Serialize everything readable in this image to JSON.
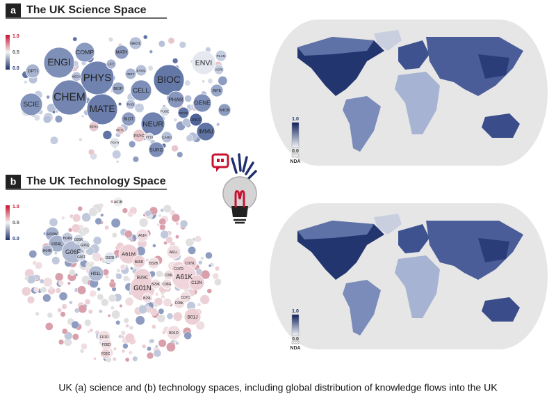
{
  "panels": [
    {
      "letter": "a",
      "title": "The UK Science Space",
      "scale": [
        "1.0",
        "0.5",
        "0.0"
      ],
      "nodes": [
        "ENGI",
        "COMP",
        "PHYS",
        "CHEM",
        "MATE",
        "BIOC",
        "CELL",
        "ENVI",
        "SCIE",
        "OPTI",
        "MATH",
        "GEOL",
        "BIOP",
        "INST",
        "EVOL",
        "PHAR",
        "GENE",
        "NEUR",
        "BIOT",
        "IMMU",
        "ONCO",
        "SURG",
        "PSYC",
        "MICB",
        "INFE",
        "PLAN",
        "AGRI",
        "LIFE",
        "MECH",
        "RADI",
        "PUBE",
        "CARD",
        "PEDI",
        "PSYH",
        "BEHA",
        "RESE",
        "PHYL"
      ],
      "map_legend": {
        "top": "1.0",
        "bottom": "0.0",
        "nda": "NDA"
      }
    },
    {
      "letter": "b",
      "title": "The UK Technology Space",
      "scale": [
        "1.0",
        "0.5",
        "0.0"
      ],
      "nodes": [
        "A61B",
        "H04W",
        "H04L",
        "H04B",
        "H04N",
        "G06F",
        "G06K",
        "G06Q",
        "G06T",
        "A61M",
        "A61F",
        "A61L",
        "B65D",
        "B32B",
        "C07K",
        "C07D",
        "A61K",
        "C12N",
        "B29C",
        "G01N",
        "B29K",
        "C08K",
        "C07C",
        "B01J",
        "B01D",
        "F01D",
        "F05D",
        "F02C",
        "G02B",
        "H01L",
        "C08L",
        "C08G",
        "B29L"
      ],
      "map_legend": {
        "top": "1.0",
        "bottom": "0.0",
        "nda": "NDA"
      }
    }
  ],
  "caption": "UK (a) science and (b) technology spaces, including global distribution of knowledge flows into the UK"
}
